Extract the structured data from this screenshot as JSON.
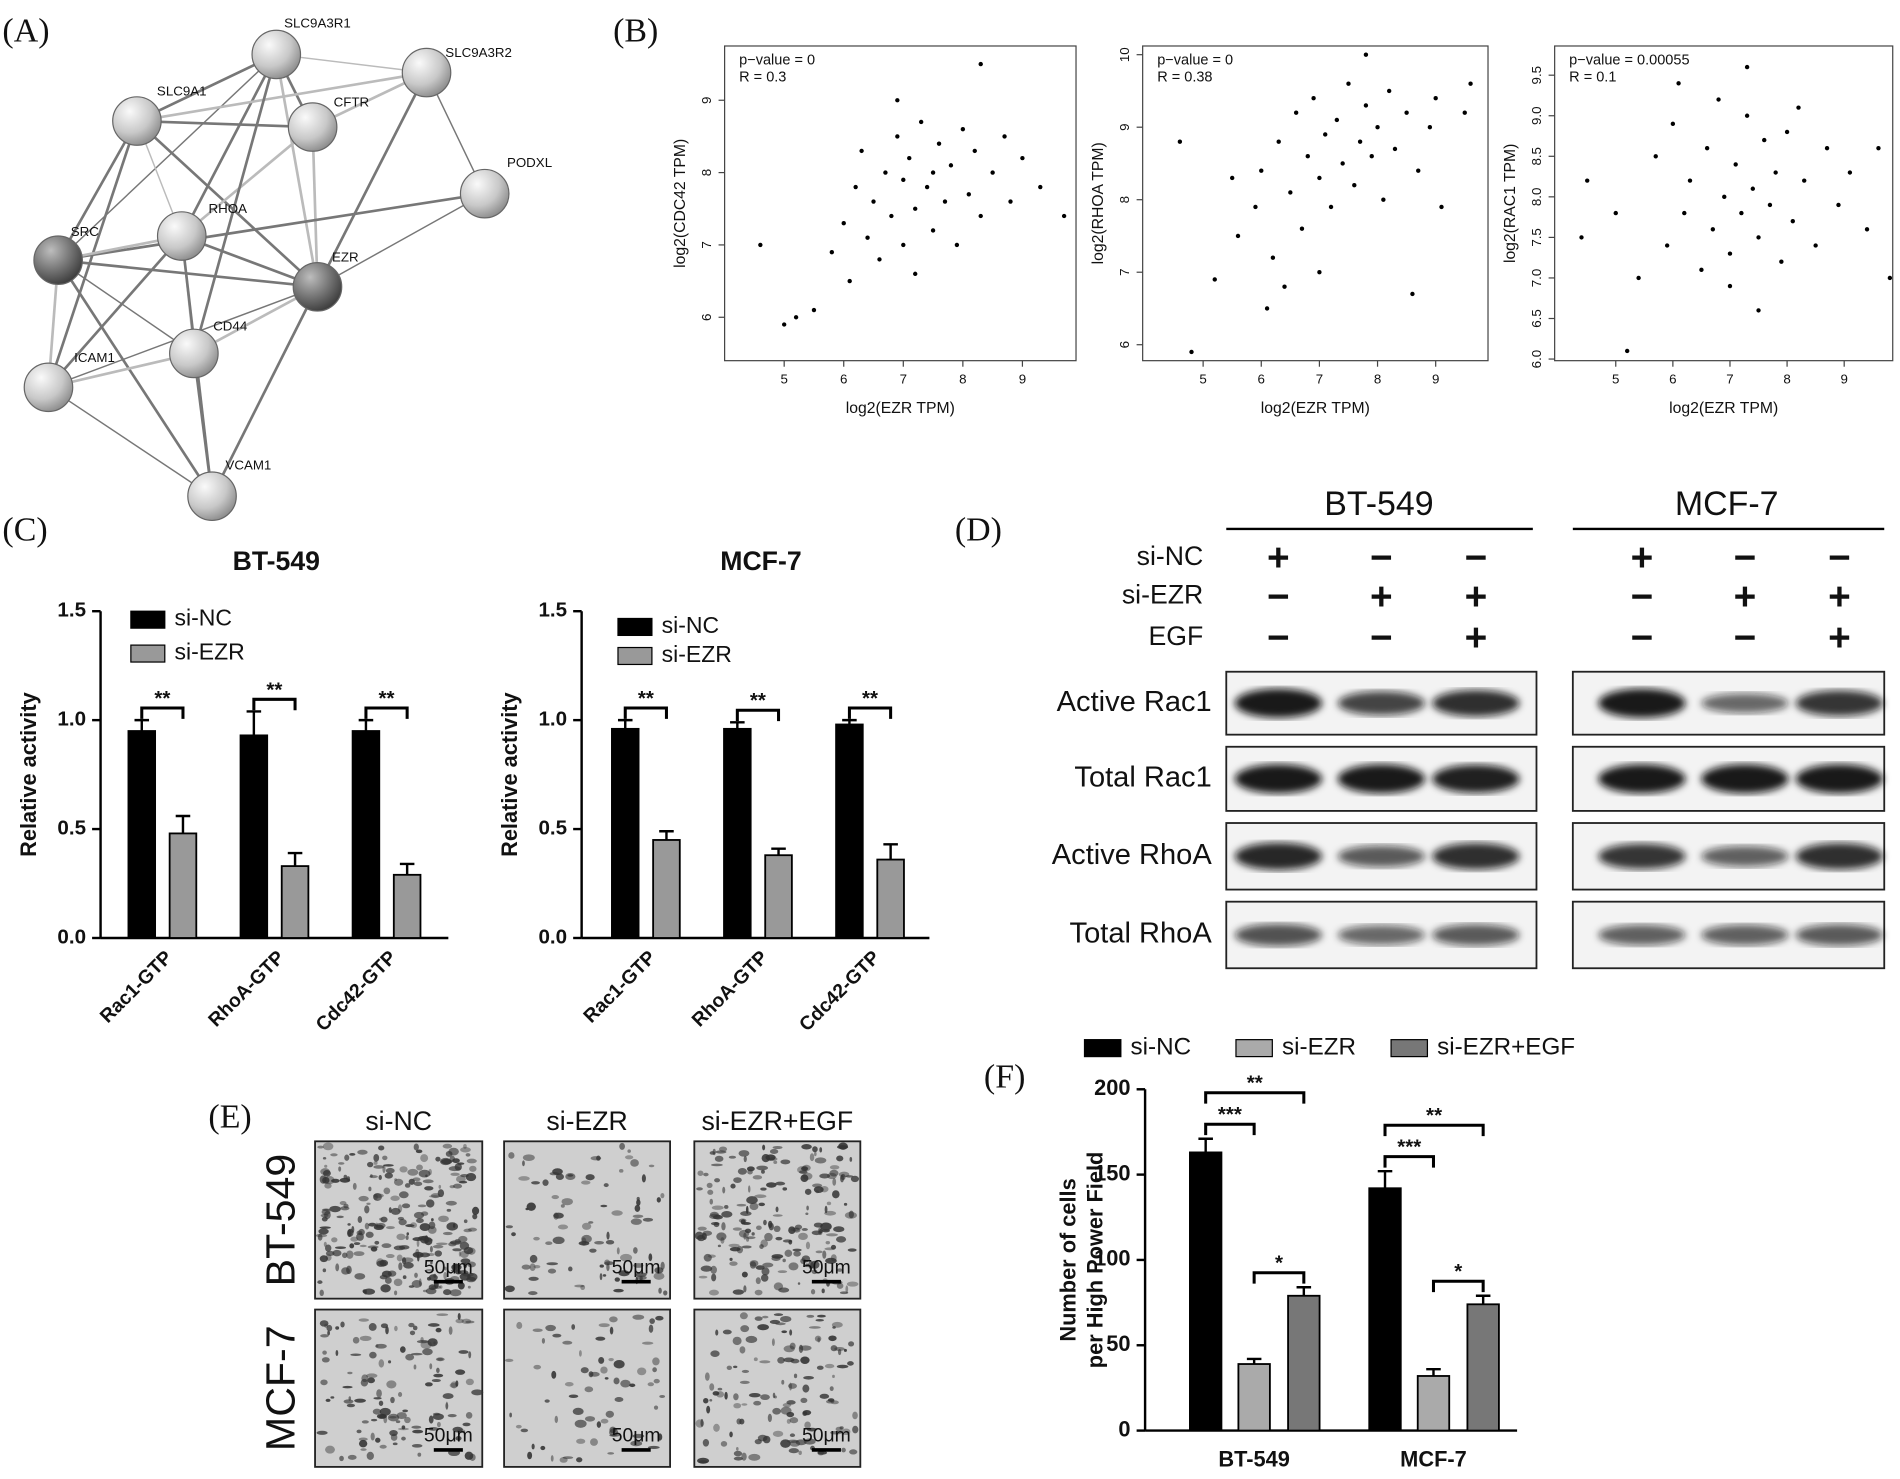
{
  "panel_labels": [
    "(A)",
    "(B)",
    "(C)",
    "(D)",
    "(E)",
    "(F)"
  ],
  "network": {
    "nodes": [
      "SLC9A3R1",
      "SLC9A3R2",
      "SLC9A1",
      "CFTR",
      "PODXL",
      "SRC",
      "RHOA",
      "EZR",
      "CD44",
      "ICAM1",
      "VCAM1"
    ]
  },
  "chart_data": [
    {
      "type": "scatter",
      "annotations": [
        "p−value = 0",
        "R = 0.3"
      ],
      "xlabel": "log2(EZR TPM)",
      "ylabel": "log2(CDC42 TPM)",
      "xlim": [
        4.0,
        9.9
      ],
      "ylim": [
        5.4,
        9.75
      ],
      "xticks": [
        5,
        6,
        7,
        8,
        9
      ],
      "yticks": [
        6,
        7,
        8,
        9
      ],
      "color": "#000000",
      "x": [
        4.6,
        5.2,
        5.5,
        5.8,
        6.0,
        6.1,
        6.2,
        6.3,
        6.4,
        6.5,
        6.6,
        6.7,
        6.8,
        6.9,
        7.0,
        7.0,
        7.1,
        7.2,
        7.2,
        7.3,
        7.4,
        7.5,
        7.5,
        7.6,
        7.7,
        7.8,
        7.9,
        8.0,
        8.1,
        8.2,
        8.3,
        8.5,
        8.7,
        8.8,
        9.0,
        9.3,
        9.7,
        8.3,
        5.0,
        6.9
      ],
      "values": [
        7.0,
        6.0,
        6.1,
        6.9,
        7.3,
        6.5,
        7.8,
        8.3,
        7.1,
        7.6,
        6.8,
        8.0,
        7.4,
        8.5,
        7.0,
        7.9,
        8.2,
        7.5,
        6.6,
        8.7,
        7.8,
        8.0,
        7.2,
        8.4,
        7.6,
        8.1,
        7.0,
        8.6,
        7.7,
        8.3,
        7.4,
        8.0,
        8.5,
        7.6,
        8.2,
        7.8,
        7.4,
        9.5,
        5.9,
        9.0
      ]
    },
    {
      "type": "scatter",
      "annotations": [
        "p−value = 0",
        "R = 0.38"
      ],
      "xlabel": "log2(EZR TPM)",
      "ylabel": "log2(RHOA TPM)",
      "xlim": [
        3.96,
        9.9
      ],
      "ylim": [
        5.78,
        10.12
      ],
      "xticks": [
        5,
        6,
        7,
        8,
        9
      ],
      "yticks": [
        6,
        7,
        8,
        9,
        10
      ],
      "color": "#000000",
      "x": [
        4.6,
        4.8,
        5.2,
        5.6,
        5.9,
        6.0,
        6.2,
        6.3,
        6.5,
        6.6,
        6.7,
        6.8,
        6.9,
        7.0,
        7.1,
        7.2,
        7.3,
        7.4,
        7.5,
        7.6,
        7.7,
        7.8,
        7.9,
        8.0,
        8.1,
        8.2,
        8.3,
        8.5,
        8.7,
        8.9,
        9.1,
        9.6,
        9.5,
        7.0,
        6.4,
        8.6,
        5.5,
        7.8,
        6.1,
        9.0
      ],
      "values": [
        8.8,
        5.9,
        6.9,
        7.5,
        7.9,
        8.4,
        7.2,
        8.8,
        8.1,
        9.2,
        7.6,
        8.6,
        9.4,
        8.3,
        8.9,
        7.9,
        9.1,
        8.5,
        9.6,
        8.2,
        8.8,
        9.3,
        8.6,
        9.0,
        8.0,
        9.5,
        8.7,
        9.2,
        8.4,
        9.0,
        7.9,
        9.6,
        9.2,
        7.0,
        6.8,
        6.7,
        8.3,
        10.0,
        6.5,
        9.4
      ]
    },
    {
      "type": "scatter",
      "annotations": [
        "p−value = 0.00055",
        "R = 0.1"
      ],
      "xlabel": "log2(EZR TPM)",
      "ylabel": "log2(RAC1 TPM)",
      "xlim": [
        3.93,
        9.85
      ],
      "ylim": [
        5.98,
        9.86
      ],
      "xticks": [
        5,
        6,
        7,
        8,
        9
      ],
      "yticks": [
        {
          "value": 6,
          "label": "6.0"
        },
        6.5,
        {
          "value": 7,
          "label": "7.0"
        },
        7.5,
        {
          "value": 8,
          "label": "8.0"
        },
        8.5,
        {
          "value": 9,
          "label": "9.0"
        },
        9.5
      ],
      "color": "#000000",
      "x": [
        4.4,
        4.5,
        5.0,
        5.2,
        5.4,
        5.7,
        5.9,
        6.0,
        6.2,
        6.3,
        6.5,
        6.6,
        6.7,
        6.8,
        6.9,
        7.0,
        7.1,
        7.2,
        7.3,
        7.4,
        7.5,
        7.6,
        7.7,
        7.8,
        7.9,
        8.0,
        8.1,
        8.3,
        8.5,
        8.7,
        8.9,
        9.1,
        9.4,
        9.8,
        7.3,
        7.5,
        6.1,
        8.2,
        7.0,
        9.6
      ],
      "values": [
        7.5,
        8.2,
        7.8,
        6.1,
        7.0,
        8.5,
        7.4,
        8.9,
        7.8,
        8.2,
        7.1,
        8.6,
        7.6,
        9.2,
        8.0,
        7.3,
        8.4,
        7.8,
        9.0,
        8.1,
        7.5,
        8.7,
        7.9,
        8.3,
        7.2,
        8.8,
        7.7,
        8.2,
        7.4,
        8.6,
        7.9,
        8.3,
        7.6,
        7.0,
        9.6,
        6.6,
        9.4,
        9.1,
        6.9,
        8.6
      ]
    },
    {
      "type": "bar",
      "title": "BT-549",
      "ylabel": "Relative activity",
      "categories": [
        "Rac1-GTP",
        "RhoA-GTP",
        "Cdc42-GTP"
      ],
      "ylim": [
        0,
        1.5
      ],
      "yticks": [
        {
          "value": 0,
          "label": "0.0"
        },
        0.5,
        {
          "value": 1,
          "label": "1.0"
        },
        1.5
      ],
      "series": [
        {
          "name": "si-NC",
          "color": "#000000",
          "values": [
            0.95,
            0.93,
            0.95
          ],
          "errors": [
            0.05,
            0.11,
            0.05
          ]
        },
        {
          "name": "si-EZR",
          "color": "#999999",
          "values": [
            0.48,
            0.33,
            0.29
          ],
          "errors": [
            0.08,
            0.06,
            0.05
          ]
        }
      ],
      "significance": [
        "**",
        "**",
        "**"
      ]
    },
    {
      "type": "bar",
      "title": "MCF-7",
      "ylabel": "Relative activity",
      "categories": [
        "Rac1-GTP",
        "RhoA-GTP",
        "Cdc42-GTP"
      ],
      "ylim": [
        0,
        1.5
      ],
      "yticks": [
        {
          "value": 0,
          "label": "0.0"
        },
        0.5,
        {
          "value": 1,
          "label": "1.0"
        },
        1.5
      ],
      "series": [
        {
          "name": "si-NC",
          "color": "#000000",
          "values": [
            0.96,
            0.96,
            0.98
          ],
          "errors": [
            0.04,
            0.03,
            0.02
          ]
        },
        {
          "name": "si-EZR",
          "color": "#999999",
          "values": [
            0.45,
            0.38,
            0.36
          ],
          "errors": [
            0.04,
            0.03,
            0.07
          ]
        }
      ],
      "significance": [
        "**",
        "**",
        "**"
      ]
    },
    {
      "type": "bar",
      "ylabel": [
        "Number of cells",
        "per High Power Field"
      ],
      "categories": [
        "BT-549",
        "MCF-7"
      ],
      "ylim": [
        0,
        200
      ],
      "yticks": [
        0,
        50,
        100,
        150,
        200
      ],
      "series": [
        {
          "name": "si-NC",
          "color": "#000000",
          "values": [
            163,
            142
          ],
          "errors": [
            8,
            10
          ]
        },
        {
          "name": "si-EZR",
          "color": "#aaaaaa",
          "values": [
            39,
            32
          ],
          "errors": [
            3,
            4
          ]
        },
        {
          "name": "si-EZR+EGF",
          "color": "#777777",
          "values": [
            79,
            74
          ],
          "errors": [
            5,
            5
          ]
        }
      ],
      "significance": [
        [
          "***",
          "**",
          "*"
        ],
        [
          "***",
          "**",
          "*"
        ]
      ]
    }
  ],
  "western_blot": {
    "cell_lines": [
      "BT-549",
      "MCF-7"
    ],
    "conditions": [
      {
        "label": "si-NC",
        "marks": [
          "+",
          "−",
          "−",
          "+",
          "−",
          "−"
        ]
      },
      {
        "label": "si-EZR",
        "marks": [
          "−",
          "+",
          "+",
          "−",
          "+",
          "+"
        ]
      },
      {
        "label": "EGF",
        "marks": [
          "−",
          "−",
          "+",
          "−",
          "−",
          "+"
        ]
      }
    ],
    "rows": [
      "Active Rac1",
      "Total Rac1",
      "Active RhoA",
      "Total RhoA"
    ]
  },
  "microscopy": {
    "columns": [
      "si-NC",
      "si-EZR",
      "si-EZR+EGF"
    ],
    "rows": [
      "BT-549",
      "MCF-7"
    ],
    "scale_bars": [
      [
        "50μm",
        "50μm",
        "50μm"
      ],
      [
        "50μm",
        "50μm",
        "50μm"
      ]
    ]
  }
}
